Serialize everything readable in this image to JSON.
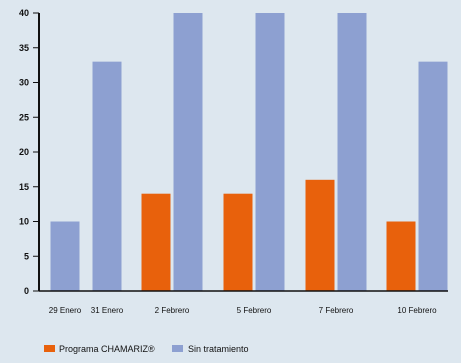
{
  "chart_data": {
    "type": "bar",
    "categories": [
      "29 Enero",
      "31 Enero",
      "2 Febrero",
      "5 Febrero",
      "7 Febrero",
      "10 Febrero"
    ],
    "series": [
      {
        "name": "Programa CHAMARIZ®",
        "color": "#e8610c",
        "values": [
          null,
          null,
          14,
          14,
          16,
          10
        ]
      },
      {
        "name": "Sin tratamiento",
        "color": "#8da0d1",
        "values": [
          10,
          33,
          40,
          40,
          40,
          33
        ]
      }
    ],
    "yticks": [
      0,
      5,
      10,
      15,
      20,
      25,
      30,
      35,
      40
    ],
    "ylim": [
      0,
      40
    ],
    "grid": false,
    "legend_position": "bottom-left",
    "background": "#dde7ef"
  }
}
